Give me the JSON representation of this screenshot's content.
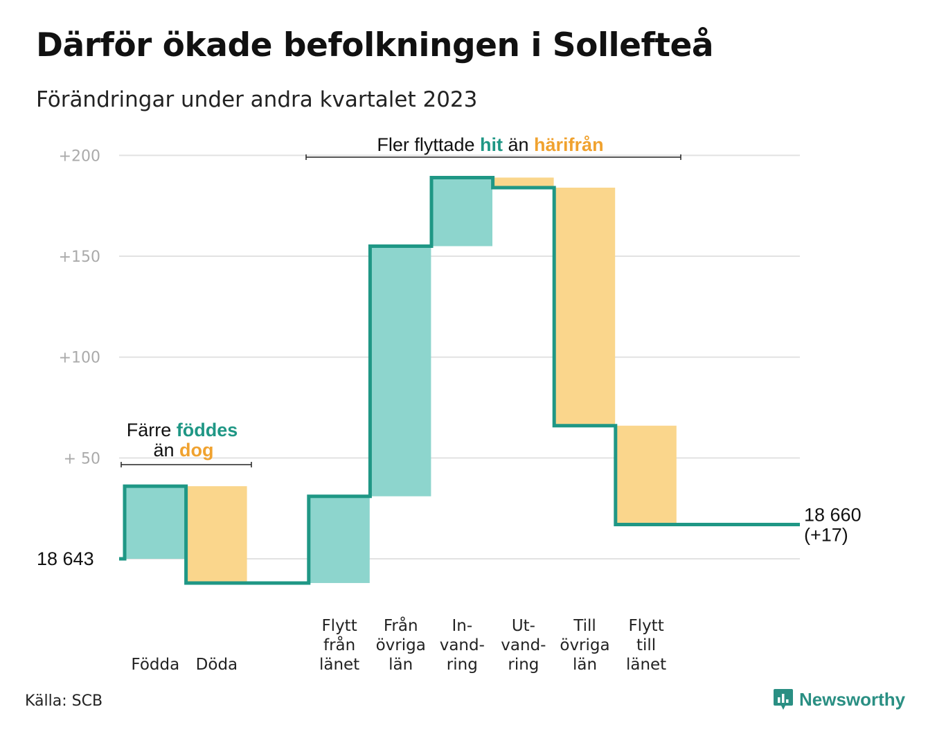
{
  "title": "Därför ökade befolkningen i Sollefteå",
  "subtitle": "Förändringar under andra kvartalet 2023",
  "source": "Källa: SCB",
  "brand": "Newsworthy",
  "colors": {
    "increase": "#8dd5cd",
    "decrease": "#fad68c",
    "line": "#1f9785",
    "grid": "#e2e2e2",
    "teal_text": "#1f9785",
    "orange_text": "#f0a22f"
  },
  "chart_data": {
    "type": "waterfall",
    "baseline_label": "18 643",
    "start_value": 18643,
    "end_value": 18660,
    "end_label_lines": [
      "18 660",
      "(+17)"
    ],
    "ylim": [
      -15,
      210
    ],
    "yticks": [
      {
        "value": 200,
        "label": "+200"
      },
      {
        "value": 150,
        "label": "+150"
      },
      {
        "value": 100,
        "label": "+100"
      },
      {
        "value": 50,
        "label": "+  50"
      }
    ],
    "steps": [
      {
        "label_lines": [
          "Födda"
        ],
        "from": 0,
        "to": 36
      },
      {
        "label_lines": [
          "Döda"
        ],
        "from": 36,
        "to": -12
      },
      {
        "label_lines": [
          "",
          "",
          ""
        ],
        "from": -12,
        "to": -12,
        "gap": true
      },
      {
        "label_lines": [
          "Flytt",
          "från",
          "länet"
        ],
        "from": -12,
        "to": 31
      },
      {
        "label_lines": [
          "Från",
          "övriga",
          "län"
        ],
        "from": 31,
        "to": 155
      },
      {
        "label_lines": [
          "In-",
          "vand-",
          "ring"
        ],
        "from": 155,
        "to": 189
      },
      {
        "label_lines": [
          "Ut-",
          "vand-",
          "ring"
        ],
        "from": 189,
        "to": 184
      },
      {
        "label_lines": [
          "Till",
          "övriga",
          "län"
        ],
        "from": 184,
        "to": 66
      },
      {
        "label_lines": [
          "Flytt",
          "till",
          "länet"
        ],
        "from": 66,
        "to": 17
      }
    ],
    "annotations": [
      {
        "parts": [
          {
            "text": "Färre ",
            "style": "plain"
          },
          {
            "text": "föddes",
            "style": "teal"
          }
        ],
        "parts2": [
          {
            "text": "än ",
            "style": "plain"
          },
          {
            "text": "dog",
            "style": "orange"
          }
        ]
      },
      {
        "parts": [
          {
            "text": "Fler flyttade ",
            "style": "plain"
          },
          {
            "text": "hit",
            "style": "teal"
          },
          {
            "text": " än ",
            "style": "plain"
          },
          {
            "text": "härifrån",
            "style": "orange"
          }
        ]
      }
    ]
  }
}
